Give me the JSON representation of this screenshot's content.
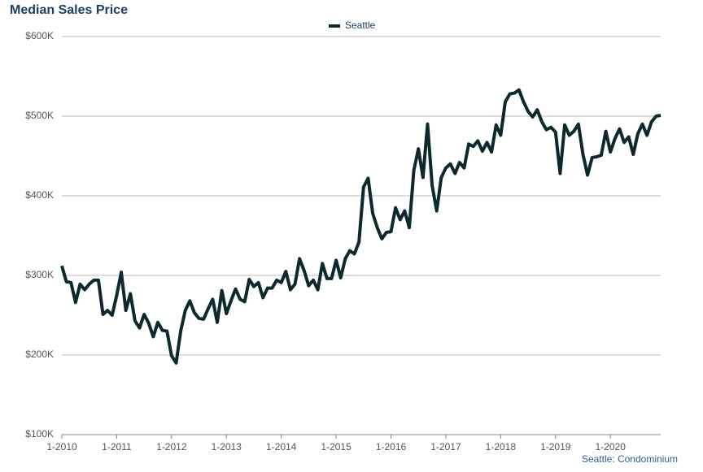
{
  "chart_data": {
    "type": "line",
    "title": "Median Sales Price",
    "footnote": "Seattle: Condominium",
    "categories": [
      "1-2010",
      null,
      null,
      null,
      null,
      null,
      null,
      null,
      null,
      null,
      null,
      null,
      "1-2011",
      null,
      null,
      null,
      null,
      null,
      null,
      null,
      null,
      null,
      null,
      null,
      "1-2012",
      null,
      null,
      null,
      null,
      null,
      null,
      null,
      null,
      null,
      null,
      null,
      "1-2013",
      null,
      null,
      null,
      null,
      null,
      null,
      null,
      null,
      null,
      null,
      null,
      "1-2014",
      null,
      null,
      null,
      null,
      null,
      null,
      null,
      null,
      null,
      null,
      null,
      "1-2015",
      null,
      null,
      null,
      null,
      null,
      null,
      null,
      null,
      null,
      null,
      null,
      "1-2016",
      null,
      null,
      null,
      null,
      null,
      null,
      null,
      null,
      null,
      null,
      null,
      "1-2017",
      null,
      null,
      null,
      null,
      null,
      null,
      null,
      null,
      null,
      null,
      null,
      "1-2018",
      null,
      null,
      null,
      null,
      null,
      null,
      null,
      null,
      null,
      null,
      null,
      "1-2019",
      null,
      null,
      null,
      null,
      null,
      null,
      null,
      null,
      null,
      null,
      null,
      "1-2020",
      null,
      null,
      null,
      null,
      null,
      null,
      null,
      null,
      null,
      null,
      null
    ],
    "series": [
      {
        "name": "Seattle",
        "color": "#0c2a2e",
        "values": [
          312000,
          292000,
          291000,
          266000,
          289000,
          282000,
          289000,
          294000,
          294000,
          251000,
          256000,
          250000,
          275000,
          304000,
          256000,
          277000,
          243000,
          234000,
          251000,
          240000,
          223000,
          241000,
          231000,
          230000,
          199000,
          190000,
          230000,
          256000,
          268000,
          253000,
          246000,
          245000,
          258000,
          270000,
          241000,
          281000,
          252000,
          268000,
          283000,
          270000,
          267000,
          295000,
          286000,
          291000,
          272000,
          284000,
          284000,
          294000,
          291000,
          305000,
          282000,
          289000,
          321000,
          306000,
          287000,
          294000,
          282000,
          315000,
          296000,
          296000,
          319000,
          297000,
          321000,
          331000,
          327000,
          342000,
          411000,
          422000,
          378000,
          360000,
          346000,
          354000,
          355000,
          385000,
          370000,
          381000,
          360000,
          432000,
          459000,
          423000,
          490000,
          413000,
          381000,
          423000,
          435000,
          440000,
          428000,
          442000,
          435000,
          465000,
          462000,
          469000,
          456000,
          467000,
          455000,
          489000,
          476000,
          518000,
          528000,
          529000,
          533000,
          518000,
          506000,
          499000,
          508000,
          493000,
          483000,
          486000,
          480000,
          428000,
          489000,
          476000,
          481000,
          490000,
          452000,
          426000,
          448000,
          449000,
          451000,
          481000,
          455000,
          472000,
          484000,
          467000,
          474000,
          452000,
          478000,
          490000,
          476000,
          493000,
          500000,
          501000
        ]
      }
    ],
    "ylim": [
      100000,
      600000
    ],
    "yticks": [
      {
        "value": 100000,
        "label": "$100K"
      },
      {
        "value": 200000,
        "label": "$200K"
      },
      {
        "value": 300000,
        "label": "$300K"
      },
      {
        "value": 400000,
        "label": "$400K"
      },
      {
        "value": 500000,
        "label": "$500K"
      },
      {
        "value": 600000,
        "label": "$600K"
      }
    ],
    "grid": true
  }
}
